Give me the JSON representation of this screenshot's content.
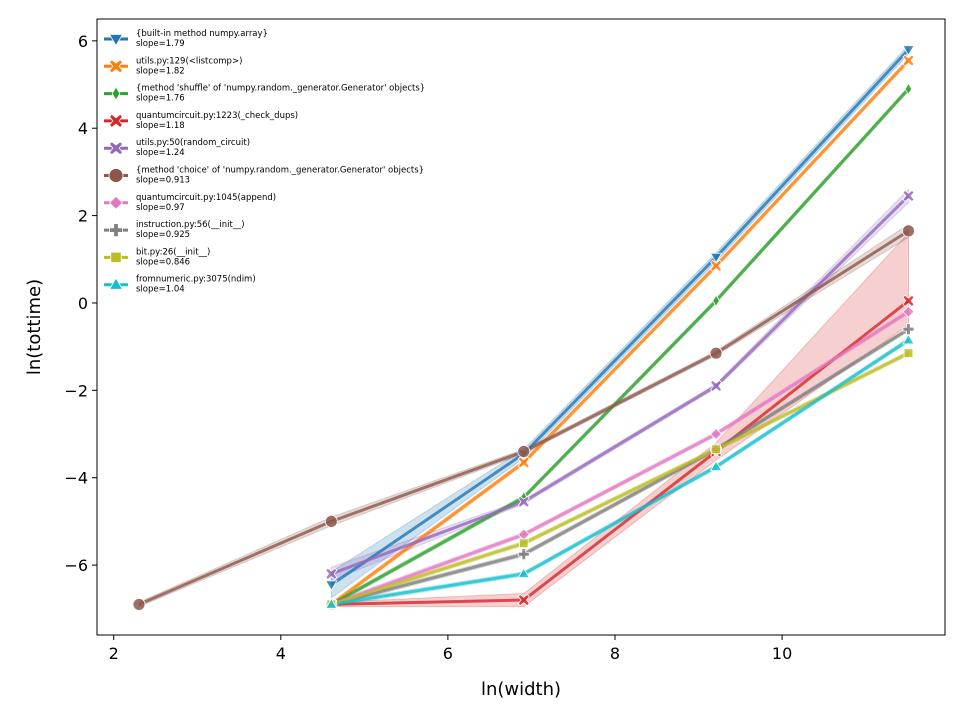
{
  "chart_data": {
    "type": "line",
    "xlabel": "ln(width)",
    "ylabel": "ln(tottime)",
    "xlim": [
      1.8,
      11.95
    ],
    "ylim": [
      -7.6,
      6.5
    ],
    "xticks": [
      2,
      4,
      6,
      8,
      10
    ],
    "xtick_labels": [
      "2",
      "4",
      "6",
      "8",
      "10"
    ],
    "yticks": [
      -6,
      -4,
      -2,
      0,
      2,
      4,
      6
    ],
    "ytick_labels": [
      "−6",
      "−4",
      "−2",
      "0",
      "2",
      "4",
      "6"
    ],
    "legend_position": "top-left",
    "series": [
      {
        "name": "{built-in method numpy.array}",
        "slope_label": "slope=1.79",
        "color": "#1f77b4",
        "marker": "triangle-down",
        "x": [
          4.605,
          6.908,
          9.21,
          11.513
        ],
        "y": [
          -6.45,
          -3.45,
          1.05,
          5.8
        ],
        "band_lower": [
          -6.75,
          -3.55,
          0.95,
          5.7
        ],
        "band_upper": [
          -6.15,
          -3.35,
          1.15,
          5.9
        ]
      },
      {
        "name": "utils.py:129(<listcomp>)",
        "slope_label": "slope=1.82",
        "color": "#ff7f0e",
        "marker": "x-filled",
        "x": [
          4.605,
          6.908,
          9.21,
          11.513
        ],
        "y": [
          -6.9,
          -3.65,
          0.85,
          5.55
        ],
        "band_lower": [
          -6.95,
          -3.7,
          0.8,
          5.5
        ],
        "band_upper": [
          -6.85,
          -3.6,
          0.9,
          5.6
        ]
      },
      {
        "name": "{method 'shuffle' of 'numpy.random._generator.Generator' objects}",
        "slope_label": "slope=1.76",
        "color": "#2ca02c",
        "marker": "thin-diamond",
        "x": [
          4.605,
          6.908,
          9.21,
          11.513
        ],
        "y": [
          -6.9,
          -4.45,
          0.05,
          4.9
        ],
        "band_lower": [
          -6.95,
          -4.5,
          0.0,
          4.85
        ],
        "band_upper": [
          -6.85,
          -4.4,
          0.1,
          4.95
        ]
      },
      {
        "name": "quantumcircuit.py:1223(_check_dups)",
        "slope_label": "slope=1.18",
        "color": "#d62728",
        "marker": "x-filled",
        "x": [
          4.605,
          6.908,
          9.21,
          11.513
        ],
        "y": [
          -6.9,
          -6.8,
          -3.4,
          0.05
        ],
        "band_lower": [
          -6.95,
          -6.95,
          -3.6,
          -0.5
        ],
        "band_upper": [
          -6.85,
          -6.65,
          -3.2,
          1.6
        ]
      },
      {
        "name": "utils.py:50(random_circuit)",
        "slope_label": "slope=1.24",
        "color": "#9467bd",
        "marker": "x-filled",
        "x": [
          4.605,
          6.908,
          9.21,
          11.513
        ],
        "y": [
          -6.2,
          -4.55,
          -1.9,
          2.45
        ],
        "band_lower": [
          -6.35,
          -4.6,
          -1.95,
          2.3
        ],
        "band_upper": [
          -6.05,
          -4.5,
          -1.85,
          2.6
        ]
      },
      {
        "name": "{method 'choice' of 'numpy.random._generator.Generator' objects}",
        "slope_label": "slope=0.913",
        "color": "#8c564b",
        "marker": "circle",
        "x": [
          2.303,
          4.605,
          6.908,
          9.21,
          11.513
        ],
        "y": [
          -6.9,
          -5.0,
          -3.4,
          -1.15,
          1.65
        ],
        "band_lower": [
          -6.95,
          -5.1,
          -3.45,
          -1.2,
          1.5
        ],
        "band_upper": [
          -6.85,
          -4.9,
          -3.35,
          -1.1,
          1.8
        ]
      },
      {
        "name": "quantumcircuit.py:1045(append)",
        "slope_label": "slope=0.97",
        "color": "#e377c2",
        "marker": "diamond",
        "x": [
          4.605,
          6.908,
          9.21,
          11.513
        ],
        "y": [
          -6.9,
          -5.3,
          -3.0,
          -0.2
        ],
        "band_lower": [
          -6.95,
          -5.35,
          -3.05,
          -0.25
        ],
        "band_upper": [
          -6.85,
          -5.25,
          -2.95,
          -0.15
        ]
      },
      {
        "name": "instruction.py:56(__init__)",
        "slope_label": "slope=0.925",
        "color": "#7f7f7f",
        "marker": "plus-filled",
        "x": [
          4.605,
          6.908,
          9.21,
          11.513
        ],
        "y": [
          -6.9,
          -5.75,
          -3.35,
          -0.6
        ],
        "band_lower": [
          -6.95,
          -5.8,
          -3.4,
          -0.65
        ],
        "band_upper": [
          -6.85,
          -5.7,
          -3.3,
          -0.55
        ]
      },
      {
        "name": "bit.py:26(__init__)",
        "slope_label": "slope=0.846",
        "color": "#bcbd22",
        "marker": "square",
        "x": [
          4.605,
          6.908,
          9.21,
          11.513
        ],
        "y": [
          -6.9,
          -5.5,
          -3.35,
          -1.15
        ],
        "band_lower": [
          -6.95,
          -5.55,
          -3.4,
          -1.2
        ],
        "band_upper": [
          -6.85,
          -5.45,
          -3.3,
          -1.1
        ]
      },
      {
        "name": "fromnumeric.py:3075(ndim)",
        "slope_label": "slope=1.04",
        "color": "#17becf",
        "marker": "triangle-up",
        "x": [
          4.605,
          6.908,
          9.21,
          11.513
        ],
        "y": [
          -6.9,
          -6.2,
          -3.75,
          -0.85
        ],
        "band_lower": [
          -6.95,
          -6.25,
          -3.8,
          -0.9
        ],
        "band_upper": [
          -6.85,
          -6.15,
          -3.7,
          -0.8
        ]
      }
    ]
  }
}
